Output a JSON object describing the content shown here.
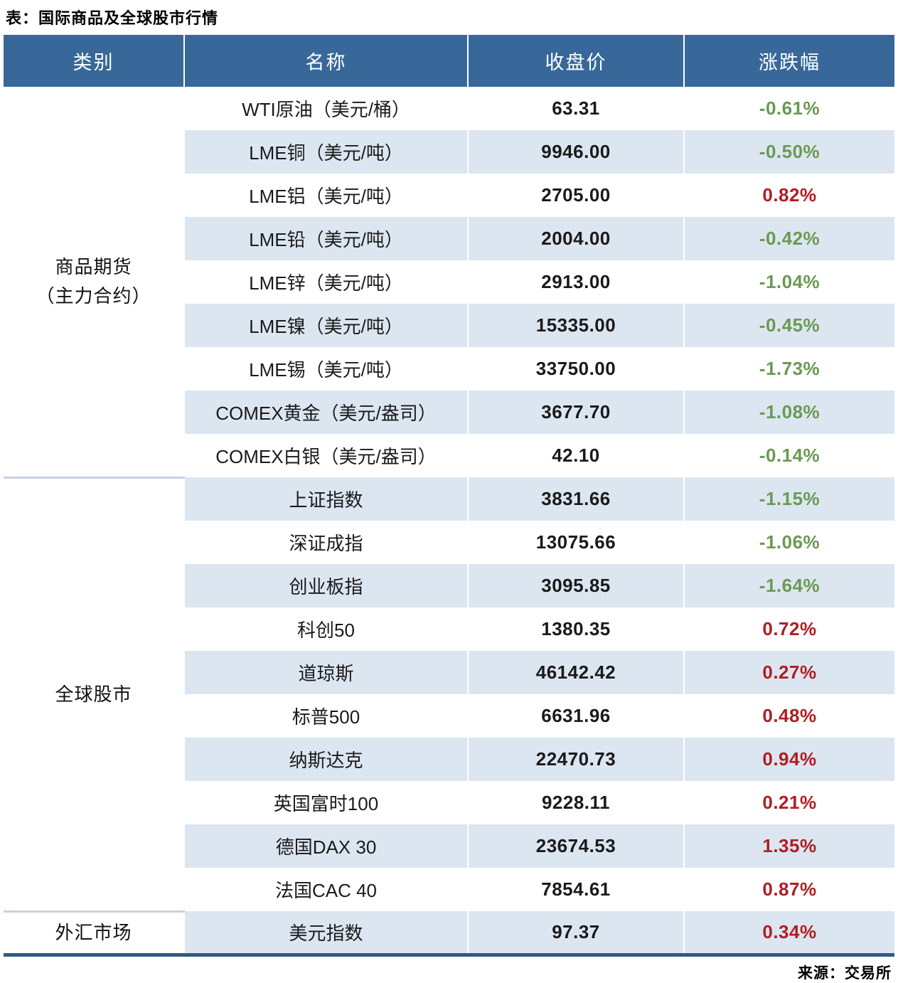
{
  "title": "表：国际商品及全球股市行情",
  "source": "来源：交易所",
  "headers": [
    "类别",
    "名称",
    "收盘价",
    "涨跌幅"
  ],
  "groups": [
    {
      "lines": [
        "商品期货",
        "（主力合约）"
      ],
      "rowspan": 9
    },
    {
      "lines": [
        "全球股市"
      ],
      "rowspan": 10
    },
    {
      "lines": [
        "外汇市场"
      ],
      "rowspan": 1
    }
  ],
  "rows": [
    {
      "name": "WTI原油（美元/桶）",
      "close": "63.31",
      "change": "-0.61%"
    },
    {
      "name": "LME铜（美元/吨）",
      "close": "9946.00",
      "change": "-0.50%"
    },
    {
      "name": "LME铝（美元/吨）",
      "close": "2705.00",
      "change": "0.82%"
    },
    {
      "name": "LME铅（美元/吨）",
      "close": "2004.00",
      "change": "-0.42%"
    },
    {
      "name": "LME锌（美元/吨）",
      "close": "2913.00",
      "change": "-1.04%"
    },
    {
      "name": "LME镍（美元/吨）",
      "close": "15335.00",
      "change": "-0.45%"
    },
    {
      "name": "LME锡（美元/吨）",
      "close": "33750.00",
      "change": "-1.73%"
    },
    {
      "name": "COMEX黄金（美元/盎司）",
      "close": "3677.70",
      "change": "-1.08%"
    },
    {
      "name": "COMEX白银（美元/盎司）",
      "close": "42.10",
      "change": "-0.14%"
    },
    {
      "name": "上证指数",
      "close": "3831.66",
      "change": "-1.15%"
    },
    {
      "name": "深证成指",
      "close": "13075.66",
      "change": "-1.06%"
    },
    {
      "name": "创业板指",
      "close": "3095.85",
      "change": "-1.64%"
    },
    {
      "name": "科创50",
      "close": "1380.35",
      "change": "0.72%"
    },
    {
      "name": "道琼斯",
      "close": "46142.42",
      "change": "0.27%"
    },
    {
      "name": "标普500",
      "close": "6631.96",
      "change": "0.48%"
    },
    {
      "name": "纳斯达克",
      "close": "22470.73",
      "change": "0.94%"
    },
    {
      "name": "英国富时100",
      "close": "9228.11",
      "change": "0.21%"
    },
    {
      "name": "德国DAX 30",
      "close": "23674.53",
      "change": "1.35%"
    },
    {
      "name": "法国CAC 40",
      "close": "7854.61",
      "change": "0.87%"
    },
    {
      "name": "美元指数",
      "close": "97.37",
      "change": "0.34%"
    }
  ],
  "colors": {
    "header_bg": "#38689A",
    "alt_row_bg": "#DCE6F1",
    "gain_red": "#B01E23",
    "decline_green": "#6A9A52",
    "bottom_border": "#315A80",
    "group_divider": "#C6D3E1"
  },
  "chart_data": {
    "type": "table",
    "title": "表：国际商品及全球股市行情",
    "columns": [
      "类别",
      "名称",
      "收盘价",
      "涨跌幅"
    ],
    "rows": [
      [
        "商品期货（主力合约）",
        "WTI原油（美元/桶）",
        63.31,
        "-0.61%"
      ],
      [
        "商品期货（主力合约）",
        "LME铜（美元/吨）",
        9946.0,
        "-0.50%"
      ],
      [
        "商品期货（主力合约）",
        "LME铝（美元/吨）",
        2705.0,
        "0.82%"
      ],
      [
        "商品期货（主力合约）",
        "LME铅（美元/吨）",
        2004.0,
        "-0.42%"
      ],
      [
        "商品期货（主力合约）",
        "LME锌（美元/吨）",
        2913.0,
        "-1.04%"
      ],
      [
        "商品期货（主力合约）",
        "LME镍（美元/吨）",
        15335.0,
        "-0.45%"
      ],
      [
        "商品期货（主力合约）",
        "LME锡（美元/吨）",
        33750.0,
        "-1.73%"
      ],
      [
        "商品期货（主力合约）",
        "COMEX黄金（美元/盎司）",
        3677.7,
        "-1.08%"
      ],
      [
        "商品期货（主力合约）",
        "COMEX白银（美元/盎司）",
        42.1,
        "-0.14%"
      ],
      [
        "全球股市",
        "上证指数",
        3831.66,
        "-1.15%"
      ],
      [
        "全球股市",
        "深证成指",
        13075.66,
        "-1.06%"
      ],
      [
        "全球股市",
        "创业板指",
        3095.85,
        "-1.64%"
      ],
      [
        "全球股市",
        "科创50",
        1380.35,
        "0.72%"
      ],
      [
        "全球股市",
        "道琼斯",
        46142.42,
        "0.27%"
      ],
      [
        "全球股市",
        "标普500",
        6631.96,
        "0.48%"
      ],
      [
        "全球股市",
        "纳斯达克",
        22470.73,
        "0.94%"
      ],
      [
        "全球股市",
        "英国富时100",
        9228.11,
        "0.21%"
      ],
      [
        "全球股市",
        "德国DAX 30",
        23674.53,
        "1.35%"
      ],
      [
        "全球股市",
        "法国CAC 40",
        7854.61,
        "0.87%"
      ],
      [
        "外汇市场",
        "美元指数",
        97.37,
        "0.34%"
      ]
    ],
    "source": "来源：交易所"
  }
}
